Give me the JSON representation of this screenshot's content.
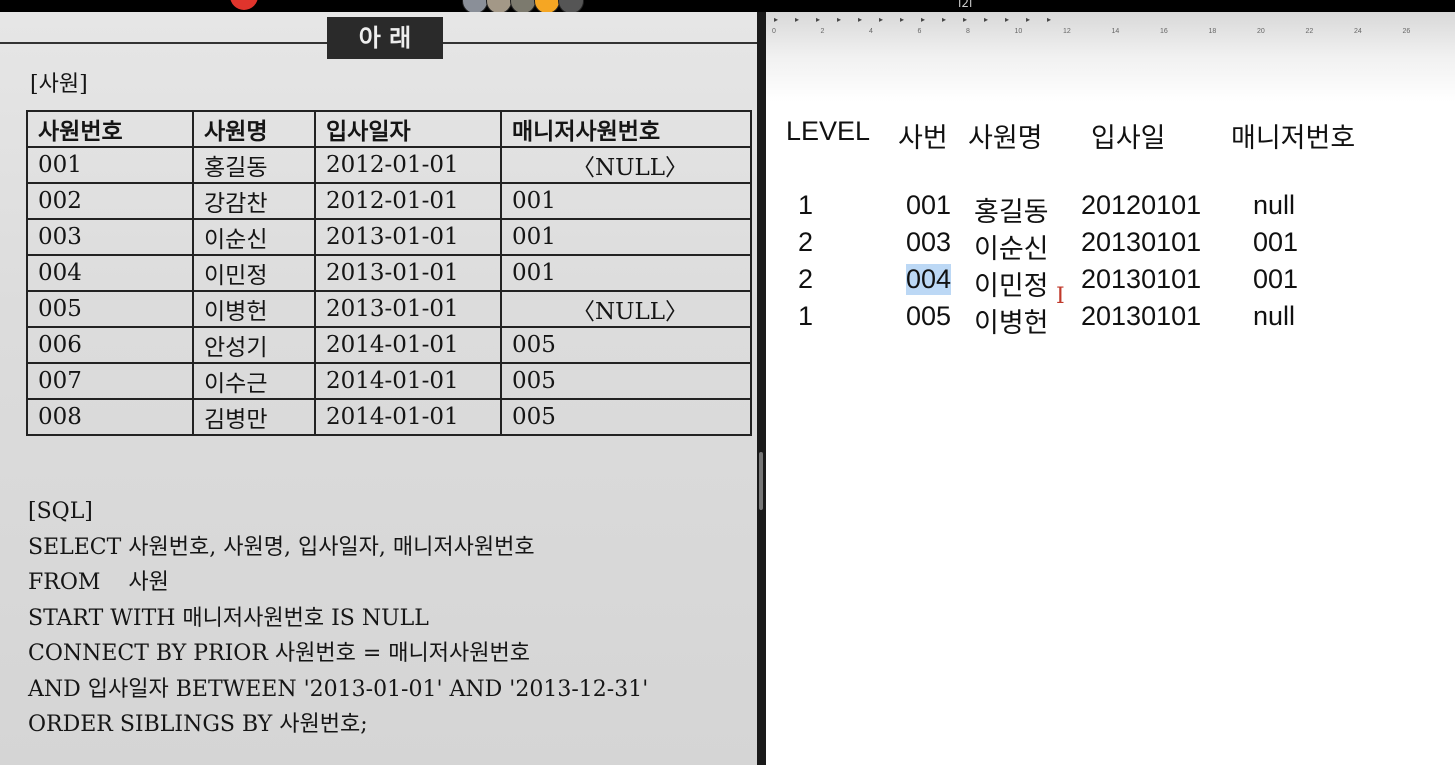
{
  "book": {
    "title": "아 래",
    "table_name": "[사원]",
    "columns": [
      "사원번호",
      "사원명",
      "입사일자",
      "매니저사원번호"
    ],
    "rows": [
      [
        "001",
        "홍길동",
        "2012-01-01",
        "〈NULL〉"
      ],
      [
        "002",
        "강감찬",
        "2012-01-01",
        "001"
      ],
      [
        "003",
        "이순신",
        "2013-01-01",
        "001"
      ],
      [
        "004",
        "이민정",
        "2013-01-01",
        "001"
      ],
      [
        "005",
        "이병헌",
        "2013-01-01",
        "〈NULL〉"
      ],
      [
        "006",
        "안성기",
        "2014-01-01",
        "005"
      ],
      [
        "007",
        "이수근",
        "2014-01-01",
        "005"
      ],
      [
        "008",
        "김병만",
        "2014-01-01",
        "005"
      ]
    ],
    "sql_lines": [
      "[SQL]",
      "SELECT 사원번호, 사원명, 입사일자, 매니저사원번호",
      "FROM    사원",
      "START WITH 매니저사원번호 IS NULL",
      "CONNECT BY PRIOR 사원번호 = 매니저사원번호",
      "AND 입사일자 BETWEEN '2013-01-01' AND '2013-12-31'",
      "ORDER SIBLINGS BY 사원번호;"
    ]
  },
  "document": {
    "ruler_numbers": [
      "0",
      "2",
      "4",
      "6",
      "8",
      "10",
      "12",
      "14",
      "16",
      "18",
      "20",
      "22",
      "24",
      "26"
    ],
    "header": [
      "LEVEL",
      "사번",
      "사원명",
      "입사일",
      "매니저번호"
    ],
    "rows": [
      [
        "1",
        "001",
        "홍길동",
        "20120101",
        "null"
      ],
      [
        "2",
        "003",
        "이순신",
        "20130101",
        "001"
      ],
      [
        "2",
        "004",
        "이민정",
        "20130101",
        "001"
      ],
      [
        "1",
        "005",
        "이병헌",
        "20130101",
        "null"
      ]
    ],
    "selected_text": "004"
  },
  "top_bar": {
    "center_text": "l2l"
  },
  "colors": {
    "selection": "#bcd8f5",
    "record_dot": "#e0342c"
  }
}
